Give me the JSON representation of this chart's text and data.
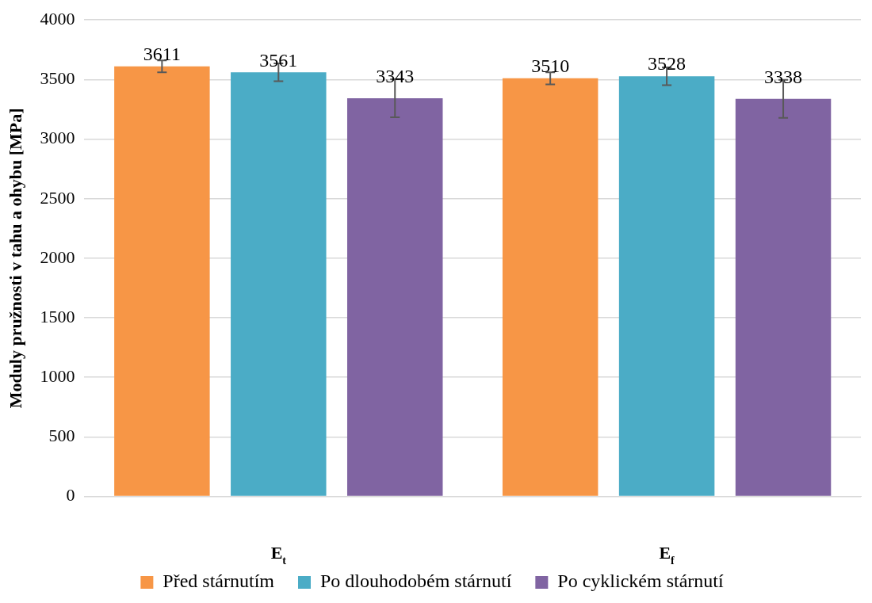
{
  "chart_data": {
    "type": "bar",
    "ylabel": "Moduly pružnosti v tahu a ohybu [MPa]",
    "categories": [
      "E$_{t}$",
      "E$_{f}$"
    ],
    "series": [
      {
        "name": "Před stárnutím",
        "color": "#f79646",
        "values": [
          3611,
          3510
        ],
        "errors": [
          50,
          50
        ]
      },
      {
        "name": "Po dlouhodobém stárnutí",
        "color": "#4bacc6",
        "values": [
          3561,
          3528
        ],
        "errors": [
          75,
          75
        ]
      },
      {
        "name": "Po cyklickém stárnutí",
        "color": "#8064a2",
        "values": [
          3343,
          3338
        ],
        "errors": [
          160,
          160
        ]
      }
    ],
    "ylim": [
      0,
      4000
    ],
    "yticks": [
      0,
      500,
      1000,
      1500,
      2000,
      2500,
      3000,
      3500,
      4000
    ],
    "grid": "y",
    "legend": "bottom",
    "data_labels": true
  }
}
